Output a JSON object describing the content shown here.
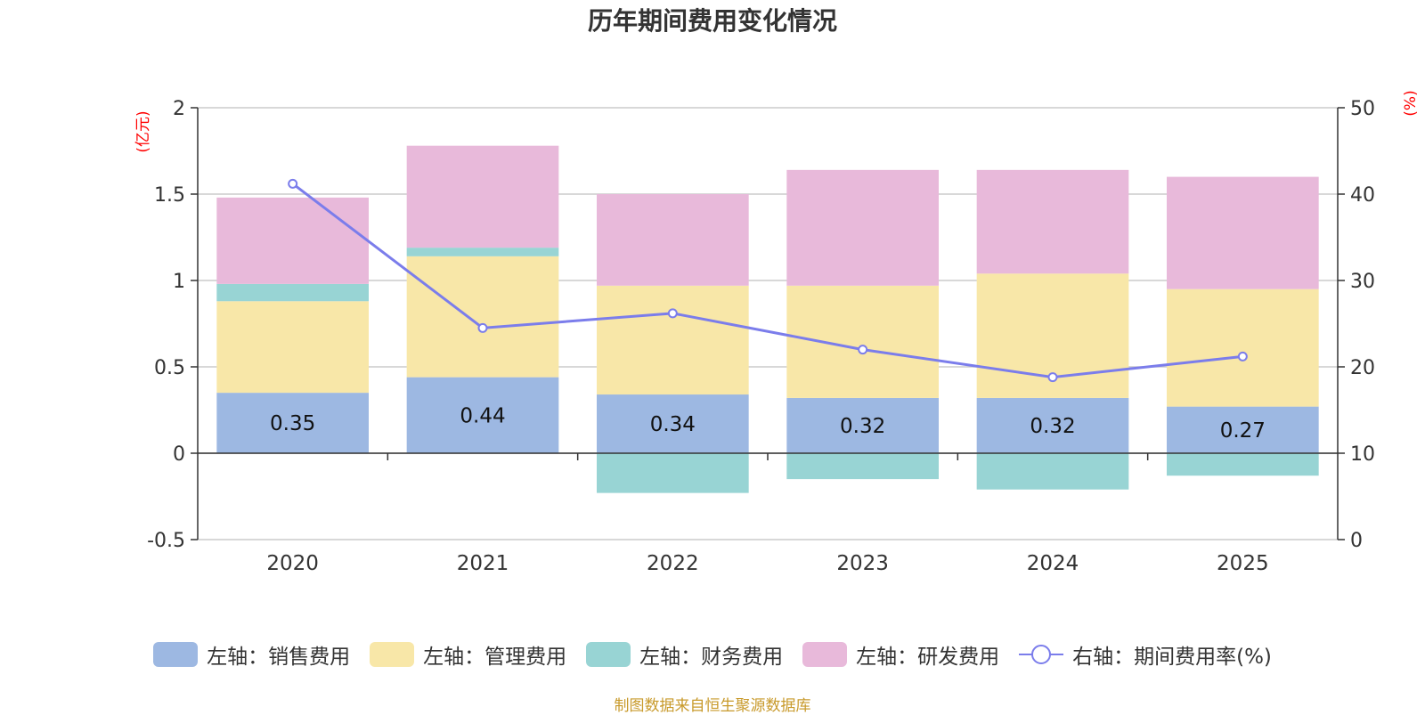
{
  "chart_data": {
    "type": "bar",
    "stacked": true,
    "title": "历年期间费用变化情况",
    "categories": [
      "2020",
      "2021",
      "2022",
      "2023",
      "2024",
      "2025"
    ],
    "y_left": {
      "unit": "(亿元)",
      "min": -0.5,
      "max": 2,
      "ticks": [
        -0.5,
        0,
        0.5,
        1,
        1.5,
        2
      ],
      "tick_labels": [
        "-0.5",
        "0",
        "0.5",
        "1",
        "1.5",
        "2"
      ]
    },
    "y_right": {
      "unit": "(%)",
      "min": 0,
      "max": 50,
      "ticks": [
        0,
        10,
        20,
        30,
        40,
        50
      ],
      "tick_labels": [
        "0",
        "10",
        "20",
        "30",
        "40",
        "50"
      ]
    },
    "grid": true,
    "series": [
      {
        "name": "左轴：销售费用",
        "axis": "left",
        "color": "#9db8e2",
        "values": [
          0.35,
          0.44,
          0.34,
          0.32,
          0.32,
          0.27
        ],
        "labels": [
          "0.35",
          "0.44",
          "0.34",
          "0.32",
          "0.32",
          "0.27"
        ]
      },
      {
        "name": "左轴：管理费用",
        "axis": "left",
        "color": "#f8e7a8",
        "values": [
          0.53,
          0.7,
          0.63,
          0.65,
          0.72,
          0.68
        ]
      },
      {
        "name": "左轴：财务费用",
        "axis": "left",
        "color": "#98d4d4",
        "values": [
          0.1,
          0.05,
          -0.23,
          -0.15,
          -0.21,
          -0.13
        ]
      },
      {
        "name": "左轴：研发费用",
        "axis": "left",
        "color": "#e8b9da",
        "values": [
          0.5,
          0.59,
          0.53,
          0.67,
          0.6,
          0.65
        ]
      },
      {
        "name": "右轴：期间费用率(%)",
        "axis": "right",
        "type": "line",
        "color": "#7b7deb",
        "values": [
          41.2,
          24.5,
          26.2,
          22.0,
          18.8,
          21.2
        ]
      }
    ],
    "legend_position": "bottom"
  },
  "source": "制图数据来自恒生聚源数据库"
}
